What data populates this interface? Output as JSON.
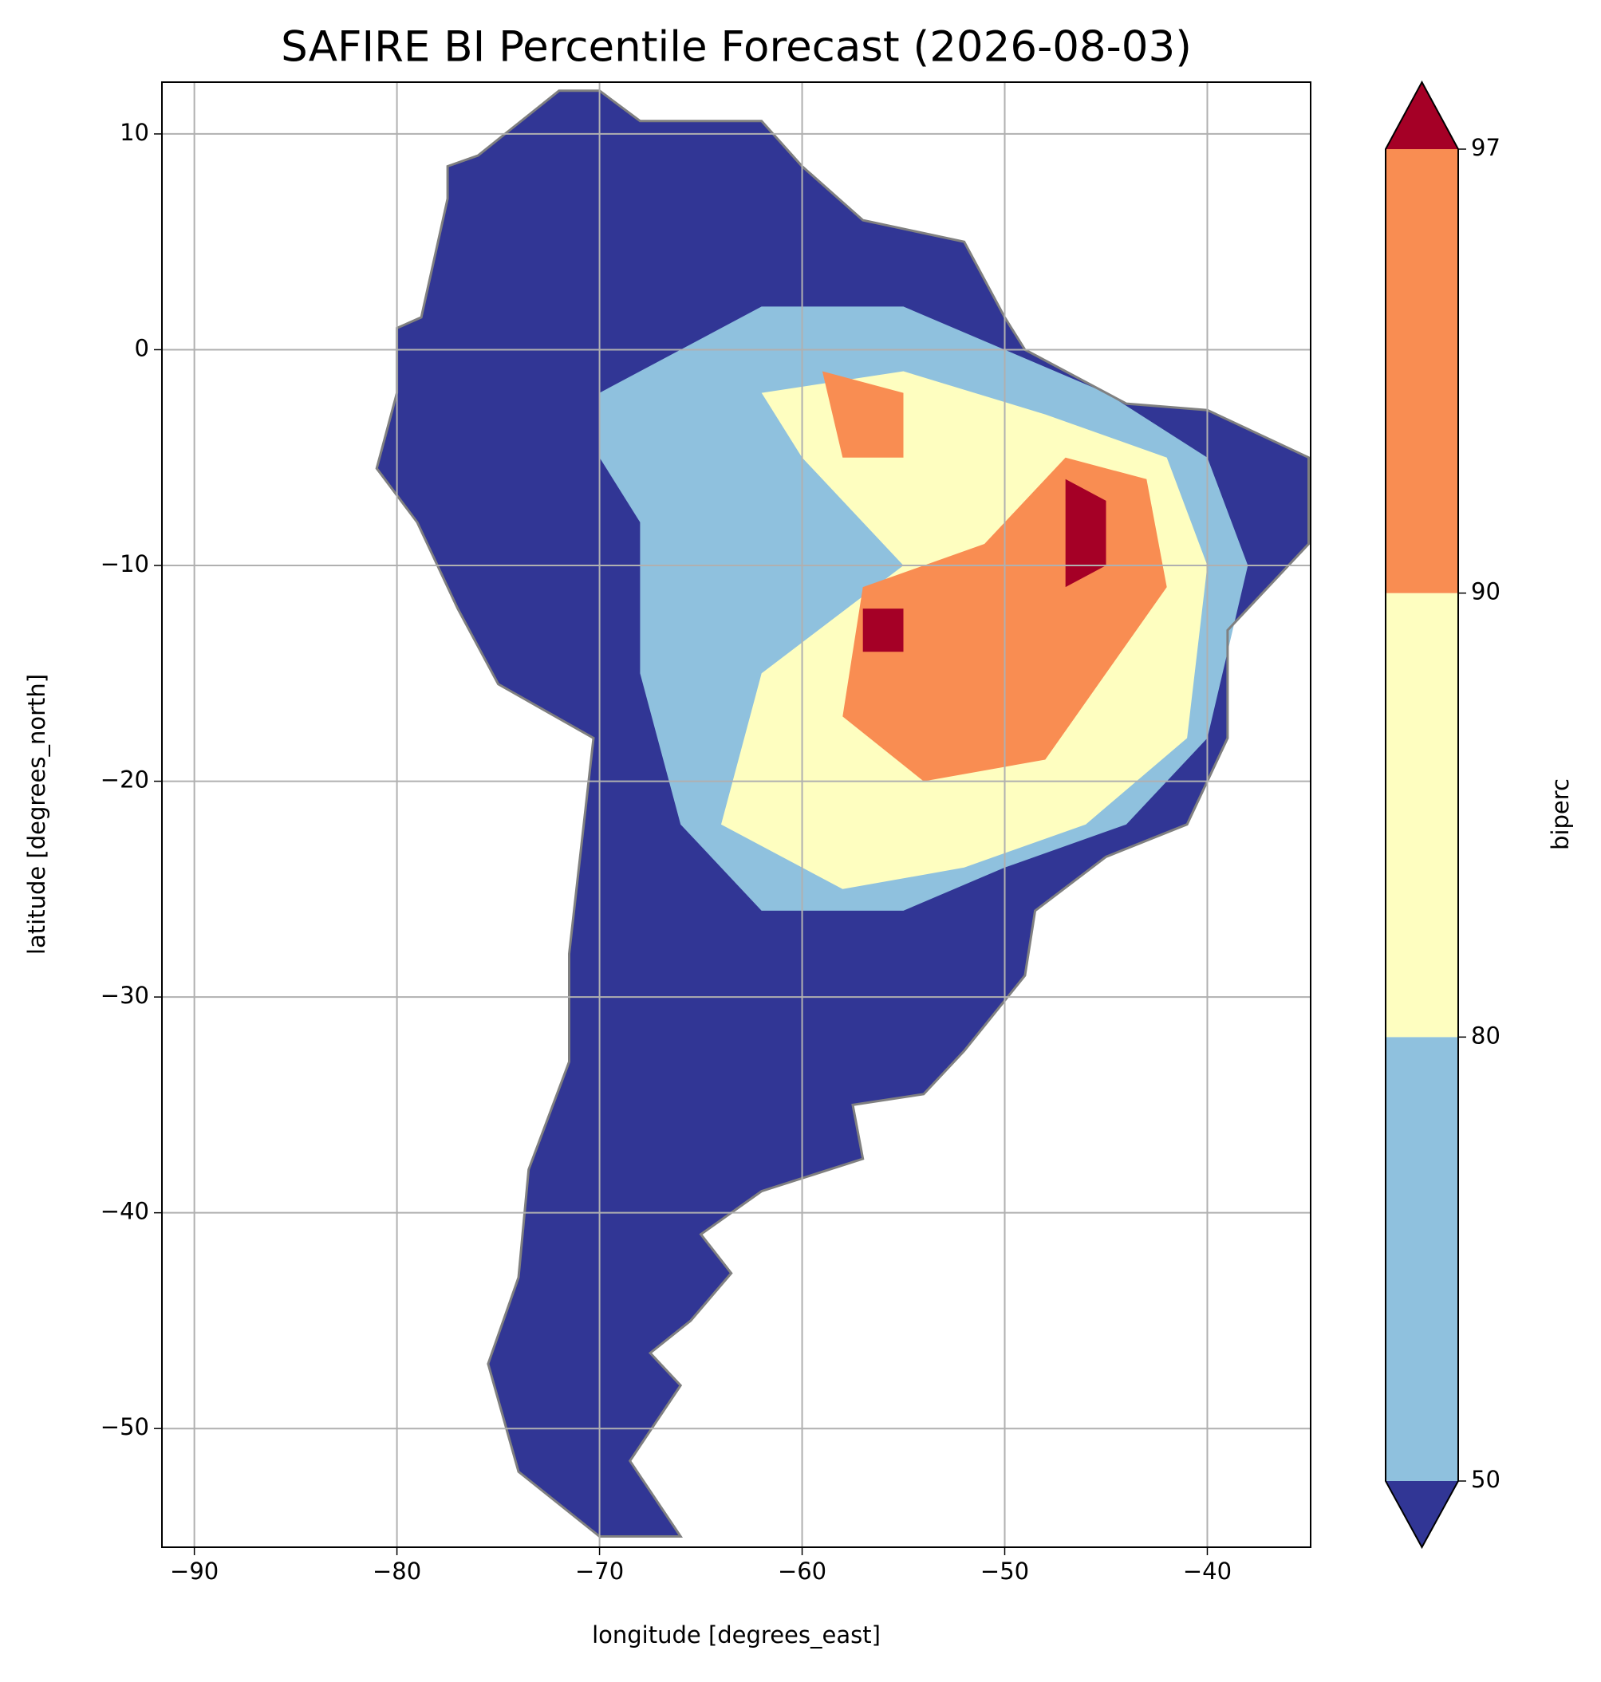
{
  "chart_data": {
    "type": "map",
    "title": "SAFIRE BI Percentile Forecast (2026-08-03)",
    "x_label": "longitude [degrees_east]",
    "y_label": "latitude [degrees_north]",
    "xlim": [
      -91.6,
      -34.9
    ],
    "ylim": [
      -55.5,
      12.4
    ],
    "xticks": [
      {
        "value": -90,
        "label": "−90"
      },
      {
        "value": -80,
        "label": "−80"
      },
      {
        "value": -70,
        "label": "−70"
      },
      {
        "value": -60,
        "label": "−60"
      },
      {
        "value": -50,
        "label": "−50"
      },
      {
        "value": -40,
        "label": "−40"
      }
    ],
    "yticks": [
      10,
      0,
      {
        "value": -10,
        "label": "−10"
      },
      {
        "value": -20,
        "label": "−20"
      },
      {
        "value": -30,
        "label": "−30"
      },
      {
        "value": -40,
        "label": "−40"
      },
      {
        "value": -50,
        "label": "−50"
      }
    ],
    "grid": true,
    "grid_color": "#b0b0b0",
    "border_color": "#808080",
    "colorbar": {
      "label": "biperc",
      "boundaries": [
        50,
        80,
        90,
        97
      ],
      "colors": [
        "#8fc1de",
        "#fefec0",
        "#f98d52"
      ],
      "under_color": "#313695",
      "over_color": "#a50026"
    },
    "regions": [
      {
        "value": 65,
        "lon": [
          -70,
          -62,
          -55,
          -50,
          -45,
          -40,
          -38,
          -40,
          -44,
          -50,
          -55,
          -62,
          -66,
          -68,
          -68,
          -70
        ],
        "lat": [
          -2,
          2,
          2,
          0,
          -2,
          -5,
          -10,
          -18,
          -22,
          -24,
          -26,
          -26,
          -22,
          -15,
          -8,
          -5
        ]
      },
      {
        "value": 85,
        "lon": [
          -62,
          -55,
          -48,
          -42,
          -40,
          -41,
          -46,
          -52,
          -58,
          -64,
          -62,
          -55,
          -60
        ],
        "lat": [
          -2,
          -1,
          -3,
          -5,
          -10,
          -18,
          -22,
          -24,
          -25,
          -22,
          -15,
          -10,
          -5
        ]
      },
      {
        "value": 93,
        "lon": [
          -59,
          -55,
          -55,
          -58
        ],
        "lat": [
          -1,
          -2,
          -5,
          -5
        ]
      },
      {
        "value": 93,
        "lon": [
          -47,
          -43,
          -42,
          -45,
          -48,
          -54,
          -58,
          -57,
          -51
        ],
        "lat": [
          -5,
          -6,
          -11,
          -15,
          -19,
          -20,
          -17,
          -11,
          -9
        ]
      },
      {
        "value": 98,
        "lon": [
          -47,
          -45,
          -45,
          -47
        ],
        "lat": [
          -6,
          -7,
          -10,
          -11
        ]
      },
      {
        "value": 98,
        "lon": [
          -57,
          -55,
          -55,
          -57
        ],
        "lat": [
          -12,
          -12,
          -14,
          -14
        ]
      }
    ]
  }
}
